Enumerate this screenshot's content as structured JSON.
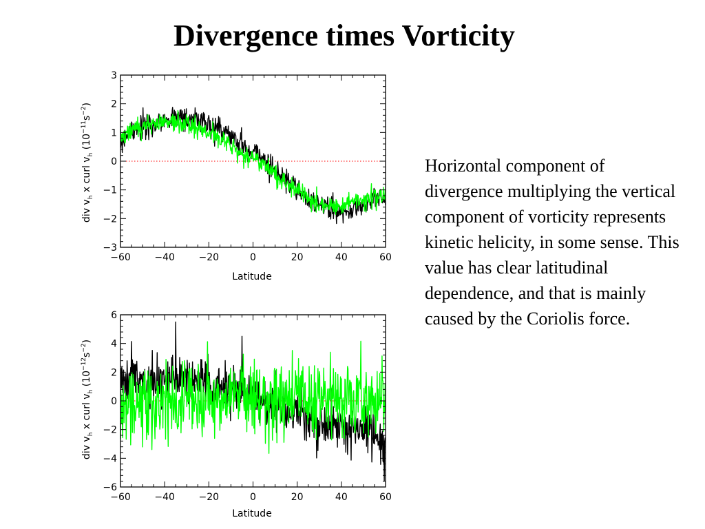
{
  "slide": {
    "title": "Divergence times Vorticity",
    "caption": "Horizontal component of divergence multiplying the vertical component of vorticity represents kinetic helicity, in some sense. This value has clear latitudinal dependence, and that is mainly caused by the Coriolis force."
  },
  "colors": {
    "series_black": "#000000",
    "series_green": "#00ff00",
    "zero_line": "#ff0000"
  },
  "chart_data": [
    {
      "type": "line",
      "xlabel": "Latitude",
      "ylabel": "div v_h x curl v_h (10^-11 s^-2)",
      "ylabel_parts": {
        "main": "div v",
        "sub1": "h",
        "mid": " x curl v",
        "sub2": "h",
        "unit_open": " (10",
        "exp1": "−11",
        "unit_s": "s",
        "exp2": "−2",
        "unit_close": ")"
      },
      "xlim": [
        -60,
        60
      ],
      "ylim": [
        -3,
        3
      ],
      "xticks": [
        -60,
        -40,
        -20,
        0,
        20,
        40,
        60
      ],
      "yticks": [
        -3,
        -2,
        -1,
        0,
        1,
        2,
        3
      ],
      "zero_line": "dotted red at y=0",
      "grid": false,
      "series": [
        {
          "color": "black",
          "x": [
            -60,
            -55,
            -50,
            -45,
            -40,
            -35,
            -30,
            -25,
            -20,
            -15,
            -10,
            -5,
            0,
            5,
            10,
            15,
            20,
            25,
            30,
            35,
            40,
            45,
            50,
            55,
            60
          ],
          "values": [
            0.6,
            1.0,
            1.2,
            1.3,
            1.4,
            1.45,
            1.5,
            1.45,
            1.3,
            1.1,
            0.85,
            0.6,
            0.3,
            0.0,
            -0.3,
            -0.65,
            -1.0,
            -1.3,
            -1.55,
            -1.7,
            -1.75,
            -1.7,
            -1.55,
            -1.35,
            -1.2
          ]
        },
        {
          "color": "green",
          "x": [
            -60,
            -55,
            -50,
            -45,
            -40,
            -35,
            -30,
            -25,
            -20,
            -15,
            -10,
            -5,
            0,
            5,
            10,
            15,
            20,
            25,
            30,
            35,
            40,
            45,
            50,
            55,
            60
          ],
          "values": [
            0.8,
            1.1,
            1.2,
            1.3,
            1.35,
            1.35,
            1.3,
            1.2,
            1.0,
            0.8,
            0.55,
            0.3,
            0.1,
            -0.15,
            -0.45,
            -0.75,
            -1.05,
            -1.3,
            -1.45,
            -1.55,
            -1.55,
            -1.45,
            -1.35,
            -1.25,
            -1.2
          ]
        }
      ]
    },
    {
      "type": "line",
      "xlabel": "Latitude",
      "ylabel": "div v_h x curl v_h (10^-12 s^-2)",
      "ylabel_parts": {
        "main": "div v",
        "sub1": "h",
        "mid": " x curl v",
        "sub2": "h",
        "unit_open": " (10",
        "exp1": "−12",
        "unit_s": "s",
        "exp2": "−2",
        "unit_close": ")"
      },
      "xlim": [
        -60,
        60
      ],
      "ylim": [
        -6,
        6
      ],
      "xticks": [
        -60,
        -40,
        -20,
        0,
        20,
        40,
        60
      ],
      "yticks": [
        -6,
        -4,
        -2,
        0,
        2,
        4,
        6
      ],
      "zero_line": "dotted red at y=0",
      "grid": false,
      "series": [
        {
          "color": "black",
          "x": [
            -60,
            -55,
            -50,
            -45,
            -40,
            -35,
            -30,
            -25,
            -20,
            -15,
            -10,
            -5,
            0,
            5,
            10,
            15,
            20,
            25,
            30,
            35,
            40,
            45,
            50,
            55,
            60
          ],
          "values": [
            1.5,
            1.6,
            1.5,
            1.5,
            1.4,
            1.5,
            1.4,
            1.3,
            1.1,
            0.9,
            0.8,
            0.6,
            0.3,
            0.0,
            -0.3,
            -0.6,
            -0.9,
            -1.2,
            -1.5,
            -1.8,
            -2.0,
            -2.0,
            -2.1,
            -2.4,
            -3.0
          ],
          "spikes": [
            {
              "x": -35,
              "y": 5.5
            },
            {
              "x": -5,
              "y": 4.5
            }
          ]
        },
        {
          "color": "green",
          "x": [
            -60,
            -55,
            -50,
            -45,
            -40,
            -35,
            -30,
            -25,
            -20,
            -15,
            -10,
            -5,
            0,
            5,
            10,
            15,
            20,
            25,
            30,
            35,
            40,
            45,
            50,
            55,
            60
          ],
          "values": [
            -0.4,
            -0.4,
            -0.4,
            -0.3,
            -0.2,
            -0.2,
            -0.1,
            0.0,
            0.0,
            0.1,
            0.1,
            0.2,
            0.2,
            0.2,
            0.2,
            0.3,
            0.3,
            0.2,
            0.2,
            0.2,
            0.2,
            0.2,
            0.2,
            0.2,
            0.2
          ]
        }
      ]
    }
  ]
}
